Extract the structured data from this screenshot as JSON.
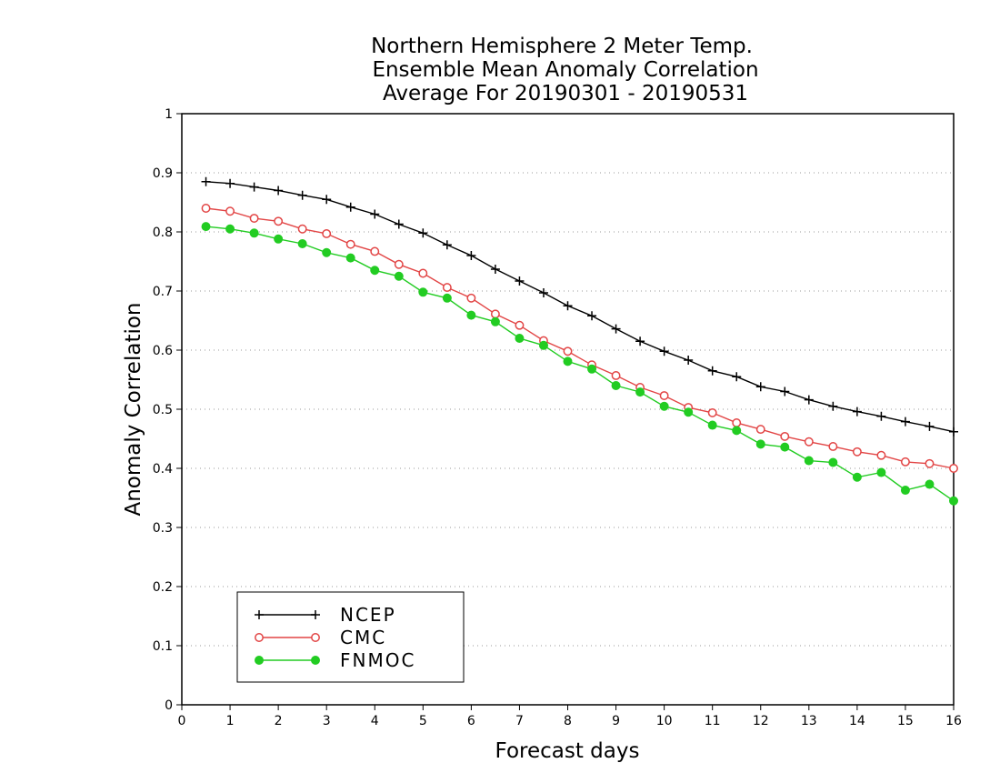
{
  "chart_data": {
    "type": "line",
    "title_lines": [
      "Northern Hemisphere 2 Meter Temp.",
      "Ensemble Mean Anomaly Correlation",
      "Average For 20190301 - 20190531"
    ],
    "xlabel": "Forecast days",
    "ylabel": "Anomaly Correlation",
    "xlim": [
      0,
      16
    ],
    "ylim": [
      0,
      1
    ],
    "x_ticks": [
      "0",
      "1",
      "2",
      "3",
      "4",
      "5",
      "6",
      "7",
      "8",
      "9",
      "10",
      "11",
      "12",
      "13",
      "14",
      "15",
      "16"
    ],
    "y_ticks": [
      "0",
      "0.1",
      "0.2",
      "0.3",
      "0.4",
      "0.5",
      "0.6",
      "0.7",
      "0.8",
      "0.9",
      "1"
    ],
    "grid": "horizontal dotted",
    "legend_position": "bottom-left",
    "x": [
      0.5,
      1,
      1.5,
      2,
      2.5,
      3,
      3.5,
      4,
      4.5,
      5,
      5.5,
      6,
      6.5,
      7,
      7.5,
      8,
      8.5,
      9,
      9.5,
      10,
      10.5,
      11,
      11.5,
      12,
      12.5,
      13,
      13.5,
      14,
      14.5,
      15,
      15.5,
      16
    ],
    "series": [
      {
        "name": "NCEP",
        "color": "#000000",
        "marker": "plus",
        "values": [
          0.885,
          0.882,
          0.876,
          0.87,
          0.862,
          0.855,
          0.842,
          0.83,
          0.813,
          0.798,
          0.778,
          0.76,
          0.737,
          0.717,
          0.697,
          0.675,
          0.658,
          0.636,
          0.615,
          0.598,
          0.583,
          0.565,
          0.555,
          0.538,
          0.53,
          0.516,
          0.505,
          0.496,
          0.488,
          0.479,
          0.471,
          0.462
        ]
      },
      {
        "name": "CMC",
        "color": "#e24545",
        "marker": "open-circle",
        "values": [
          0.84,
          0.835,
          0.823,
          0.818,
          0.805,
          0.797,
          0.779,
          0.767,
          0.745,
          0.73,
          0.706,
          0.688,
          0.661,
          0.642,
          0.616,
          0.598,
          0.575,
          0.557,
          0.537,
          0.523,
          0.503,
          0.494,
          0.477,
          0.466,
          0.454,
          0.445,
          0.437,
          0.428,
          0.422,
          0.411,
          0.408,
          0.4
        ]
      },
      {
        "name": "FNMOC",
        "color": "#22cc22",
        "marker": "filled-circle",
        "values": [
          0.809,
          0.805,
          0.798,
          0.788,
          0.78,
          0.765,
          0.756,
          0.735,
          0.725,
          0.698,
          0.688,
          0.659,
          0.648,
          0.62,
          0.608,
          0.581,
          0.568,
          0.54,
          0.529,
          0.505,
          0.495,
          0.473,
          0.464,
          0.441,
          0.436,
          0.413,
          0.41,
          0.385,
          0.393,
          0.363,
          0.373,
          0.345
        ]
      }
    ]
  }
}
